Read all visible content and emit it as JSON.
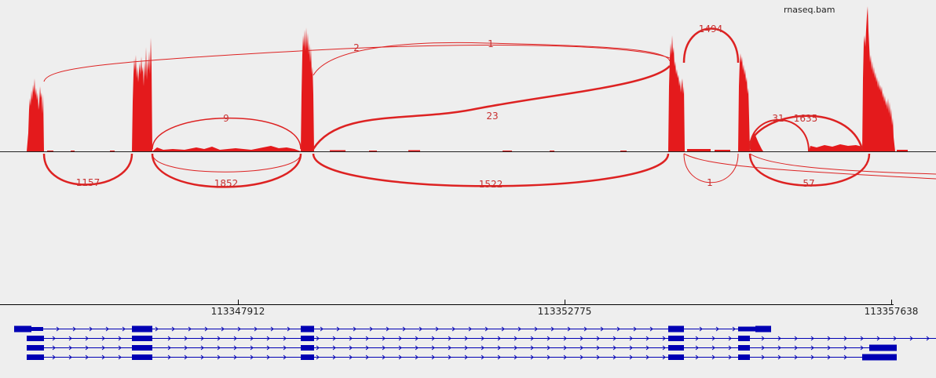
{
  "track_name": "rnaseq.bam",
  "colors": {
    "coverage": "#e41a1c",
    "junction": "#dd2222",
    "junction_label": "#c83030",
    "transcript": "#0000b4",
    "axis": "#000000",
    "background": "#eeeeee"
  },
  "axis": {
    "tick_labels": [
      "113347912",
      "113352775",
      "113357638"
    ]
  },
  "junctions_above": [
    {
      "label": "2"
    },
    {
      "label": "1"
    },
    {
      "label": "1494"
    },
    {
      "label": "9"
    },
    {
      "label": "23"
    },
    {
      "label": "31"
    },
    {
      "label": "1635"
    }
  ],
  "junctions_below": [
    {
      "label": "1157"
    },
    {
      "label": "1852"
    },
    {
      "label": "1522"
    },
    {
      "label": "1"
    },
    {
      "label": "57"
    }
  ],
  "transcript_count": 4
}
